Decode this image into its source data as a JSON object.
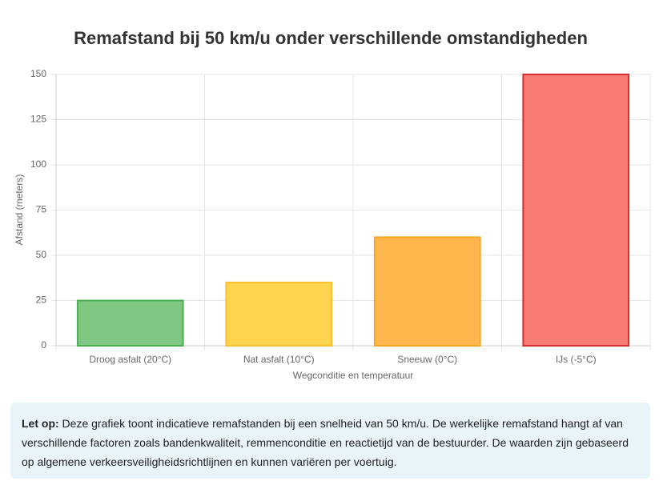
{
  "chart_data": {
    "type": "bar",
    "title": "Remafstand bij 50 km/u onder verschillende omstandigheden",
    "x_label": "Wegconditie en temperatuur",
    "y_label": "Afstand (meters)",
    "categories": [
      "Droog asfalt (20°C)",
      "Nat asfalt (10°C)",
      "Sneeuw (0°C)",
      "IJs (-5°C)"
    ],
    "values": [
      25,
      35,
      60,
      150
    ],
    "colors": [
      "#81c784",
      "#ffd54f",
      "#ffb74d",
      "#f77b72"
    ],
    "border_colors": [
      "#4caf50",
      "#fbc02d",
      "#f5a623",
      "#d32f2f"
    ],
    "ylim": [
      0,
      150
    ],
    "yticks": [
      0,
      25,
      50,
      75,
      100,
      125,
      150
    ],
    "grid": true
  },
  "note": {
    "label": "Let op:",
    "text": "Deze grafiek toont indicatieve remafstanden bij een snelheid van 50 km/u. De werkelijke remafstand hangt af van verschillende factoren zoals bandenkwaliteit, remmenconditie en reactietijd van de bestuurder. De waarden zijn gebaseerd op algemene verkeersveiligheidsrichtlijnen en kunnen variëren per voertuig."
  }
}
